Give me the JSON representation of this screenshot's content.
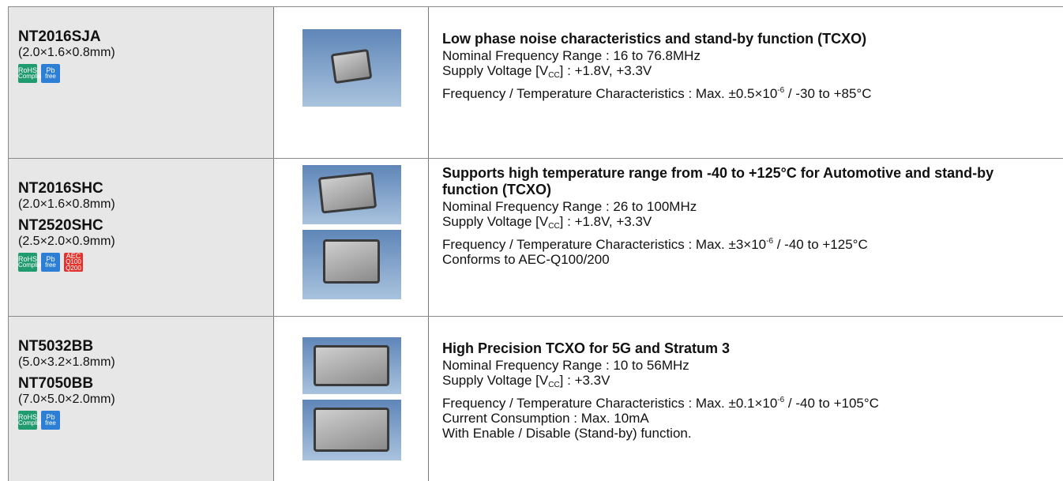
{
  "rows": [
    {
      "products": [
        {
          "name": "NT2016SJA",
          "size": "(2.0×1.6×0.8mm)"
        }
      ],
      "badges": [
        {
          "lines": [
            "RoHS",
            "Compliant"
          ],
          "color": "#1f9b6f"
        },
        {
          "lines": [
            "Pb",
            "free"
          ],
          "color": "#2d7fd6"
        }
      ],
      "description": {
        "heading": "Low phase noise characteristics and stand-by function (TCXO)",
        "lines": [
          [
            {
              "text": "Nominal Frequency Range : 16 to 76.8MHz"
            }
          ],
          [
            {
              "text": "Supply Voltage [V"
            },
            {
              "text": "CC",
              "script": "sub"
            },
            {
              "text": "] : +1.8V, +3.3V"
            }
          ],
          [
            {
              "text": "Frequency / Temperature Characteristics : Max. ±0.5×10"
            },
            {
              "text": "-6",
              "script": "sup"
            },
            {
              "text": " / -30 to +85°C"
            }
          ]
        ]
      }
    },
    {
      "products": [
        {
          "name": "NT2016SHC",
          "size": "(2.0×1.6×0.8mm)"
        },
        {
          "name": "NT2520SHC",
          "size": "(2.5×2.0×0.9mm)"
        }
      ],
      "badges": [
        {
          "lines": [
            "RoHS",
            "Compliant"
          ],
          "color": "#1f9b6f"
        },
        {
          "lines": [
            "Pb",
            "free"
          ],
          "color": "#2d7fd6"
        },
        {
          "lines": [
            "AEC",
            "Q100",
            "Q200"
          ],
          "color": "#e2322b"
        }
      ],
      "description": {
        "heading": "Supports high temperature range from -40 to +125°C for Automotive and stand-by function (TCXO)",
        "lines": [
          [
            {
              "text": "Nominal Frequency Range : 26 to 100MHz"
            }
          ],
          [
            {
              "text": "Supply Voltage [V"
            },
            {
              "text": "CC",
              "script": "sub"
            },
            {
              "text": "] : +1.8V, +3.3V"
            }
          ],
          [
            {
              "text": "Frequency / Temperature Characteristics : Max. ±3×10"
            },
            {
              "text": "-6",
              "script": "sup"
            },
            {
              "text": " / -40 to +125°C"
            }
          ],
          [
            {
              "text": "Conforms to AEC-Q100/200"
            }
          ]
        ]
      }
    },
    {
      "products": [
        {
          "name": "NT5032BB",
          "size": "(5.0×3.2×1.8mm)"
        },
        {
          "name": "NT7050BB",
          "size": "(7.0×5.0×2.0mm)"
        }
      ],
      "badges": [
        {
          "lines": [
            "RoHS",
            "Compliant"
          ],
          "color": "#1f9b6f"
        },
        {
          "lines": [
            "Pb",
            "free"
          ],
          "color": "#2d7fd6"
        }
      ],
      "description": {
        "heading": "High Precision TCXO for 5G and Stratum 3",
        "lines": [
          [
            {
              "text": "Nominal Frequency Range : 10 to 56MHz"
            }
          ],
          [
            {
              "text": "Supply Voltage [V"
            },
            {
              "text": "CC",
              "script": "sub"
            },
            {
              "text": "] : +3.3V"
            }
          ],
          [
            {
              "text": "Frequency / Temperature Characteristics : Max. ±0.1×10"
            },
            {
              "text": "-6",
              "script": "sup"
            },
            {
              "text": " / -40 to +105°C"
            }
          ],
          [
            {
              "text": "Current Consumption : Max. 10mA"
            }
          ],
          [
            {
              "text": "With Enable / Disable (Stand-by) function."
            }
          ]
        ]
      }
    }
  ]
}
